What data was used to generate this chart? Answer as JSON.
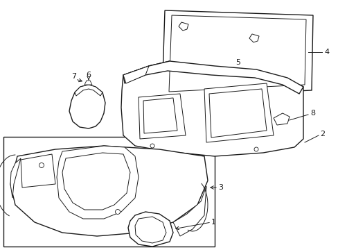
{
  "background_color": "#ffffff",
  "line_color": "#1a1a1a",
  "label_color": "#000000",
  "fig_width": 4.89,
  "fig_height": 3.6,
  "dpi": 100
}
